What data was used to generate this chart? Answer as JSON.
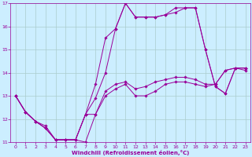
{
  "title": "",
  "xlabel": "Windchill (Refroidissement éolien,°C)",
  "ylabel": "",
  "bg_color": "#cceeff",
  "line_color": "#990099",
  "grid_color": "#aacccc",
  "xlim": [
    -0.5,
    23.5
  ],
  "ylim": [
    11,
    17
  ],
  "xticks": [
    0,
    1,
    2,
    3,
    4,
    5,
    6,
    7,
    8,
    9,
    10,
    11,
    12,
    13,
    14,
    15,
    16,
    17,
    18,
    19,
    20,
    21,
    22,
    23
  ],
  "yticks": [
    11,
    12,
    13,
    14,
    15,
    16,
    17
  ],
  "figsize": [
    3.2,
    2.0
  ],
  "dpi": 100,
  "series": [
    {
      "x": [
        0,
        1,
        2,
        3,
        4,
        5,
        6,
        7,
        8,
        9,
        10,
        11,
        12,
        13,
        14,
        15,
        16,
        17,
        18,
        19,
        20,
        21,
        22,
        23
      ],
      "y": [
        13.0,
        12.3,
        11.9,
        11.6,
        11.1,
        11.1,
        11.1,
        11.0,
        12.2,
        13.0,
        13.3,
        13.5,
        13.0,
        13.0,
        13.2,
        13.5,
        13.6,
        13.6,
        13.5,
        13.4,
        13.5,
        14.1,
        14.2,
        14.1
      ]
    },
    {
      "x": [
        0,
        1,
        2,
        3,
        4,
        5,
        6,
        7,
        8,
        9,
        10,
        11,
        12,
        13,
        14,
        15,
        16,
        17,
        18,
        19,
        20,
        21,
        22,
        23
      ],
      "y": [
        13.0,
        12.3,
        11.9,
        11.7,
        11.1,
        11.1,
        11.1,
        12.2,
        13.5,
        15.5,
        15.9,
        17.0,
        16.4,
        16.4,
        16.4,
        16.5,
        16.6,
        16.8,
        16.8,
        15.0,
        13.4,
        13.1,
        14.2,
        14.2
      ]
    },
    {
      "x": [
        0,
        1,
        2,
        3,
        4,
        5,
        6,
        7,
        8,
        9,
        10,
        11,
        12,
        13,
        14,
        15,
        16,
        17,
        18,
        19,
        20,
        21,
        22,
        23
      ],
      "y": [
        13.0,
        12.3,
        11.9,
        11.6,
        11.1,
        11.1,
        11.1,
        12.2,
        12.9,
        14.0,
        15.9,
        17.0,
        16.4,
        16.4,
        16.4,
        16.5,
        16.8,
        16.8,
        16.8,
        15.0,
        13.4,
        13.1,
        14.2,
        14.2
      ]
    },
    {
      "x": [
        0,
        1,
        2,
        3,
        4,
        5,
        6,
        7,
        8,
        9,
        10,
        11,
        12,
        13,
        14,
        15,
        16,
        17,
        18,
        19,
        20,
        21,
        22,
        23
      ],
      "y": [
        13.0,
        12.3,
        11.9,
        11.6,
        11.1,
        11.1,
        11.1,
        12.2,
        12.2,
        13.2,
        13.5,
        13.6,
        13.3,
        13.4,
        13.6,
        13.7,
        13.8,
        13.8,
        13.7,
        13.5,
        13.5,
        14.1,
        14.2,
        14.2
      ]
    }
  ]
}
